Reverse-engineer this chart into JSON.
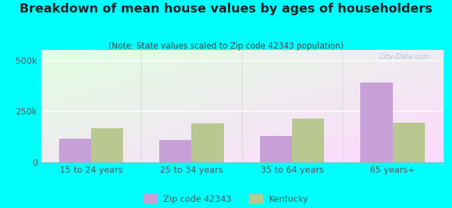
{
  "title": "Breakdown of mean house values by ages of householders",
  "subtitle": "(Note: State values scaled to Zip code 42343 population)",
  "categories": [
    "15 to 24 years",
    "25 to 34 years",
    "35 to 64 years",
    "65 years+"
  ],
  "zip_values": [
    115000,
    110000,
    130000,
    390000
  ],
  "state_values": [
    165000,
    190000,
    215000,
    195000
  ],
  "zip_color": "#c8a0d8",
  "state_color": "#b8c890",
  "zip_label": "Zip code 42343",
  "state_label": "Kentucky",
  "ylim": [
    0,
    550000
  ],
  "yticks": [
    0,
    250000,
    500000
  ],
  "ytick_labels": [
    "0",
    "250k",
    "500k"
  ],
  "background_color": "#00ffff",
  "bar_width": 0.32,
  "watermark": "City-Data.com",
  "title_fontsize": 13,
  "subtitle_fontsize": 8.5,
  "legend_fontsize": 9,
  "tick_fontsize": 9,
  "title_color": "#222222",
  "subtitle_color": "#444444",
  "tick_color": "#555555"
}
